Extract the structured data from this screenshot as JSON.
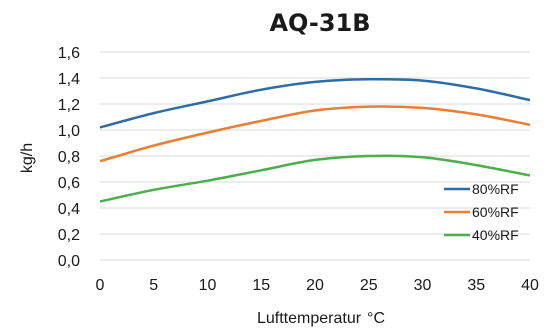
{
  "chart_data": {
    "type": "line",
    "title": "AQ-31B",
    "xlabel": "Lufttemperatur",
    "xlabel_unit": "°C",
    "ylabel": "kg/h",
    "xlim": [
      0,
      40
    ],
    "ylim": [
      0,
      1.6
    ],
    "x_ticks": [
      "0",
      "5",
      "10",
      "15",
      "20",
      "25",
      "30",
      "35",
      "40"
    ],
    "y_ticks": [
      "0,0",
      "0,2",
      "0,4",
      "0,6",
      "0,8",
      "1,0",
      "1,2",
      "1,4",
      "1,6"
    ],
    "grid": true,
    "legend_position": "bottom-right",
    "x": [
      0,
      5,
      10,
      15,
      20,
      25,
      30,
      35,
      40
    ],
    "series": [
      {
        "name": "80%RF",
        "color": "#2e6ca4",
        "values": [
          1.02,
          1.13,
          1.22,
          1.31,
          1.37,
          1.39,
          1.38,
          1.32,
          1.23
        ]
      },
      {
        "name": "60%RF",
        "color": "#ed7d31",
        "values": [
          0.76,
          0.88,
          0.98,
          1.07,
          1.15,
          1.18,
          1.17,
          1.12,
          1.04
        ]
      },
      {
        "name": "40%RF",
        "color": "#4cae4c",
        "values": [
          0.45,
          0.54,
          0.61,
          0.69,
          0.77,
          0.8,
          0.79,
          0.73,
          0.65
        ]
      }
    ]
  }
}
